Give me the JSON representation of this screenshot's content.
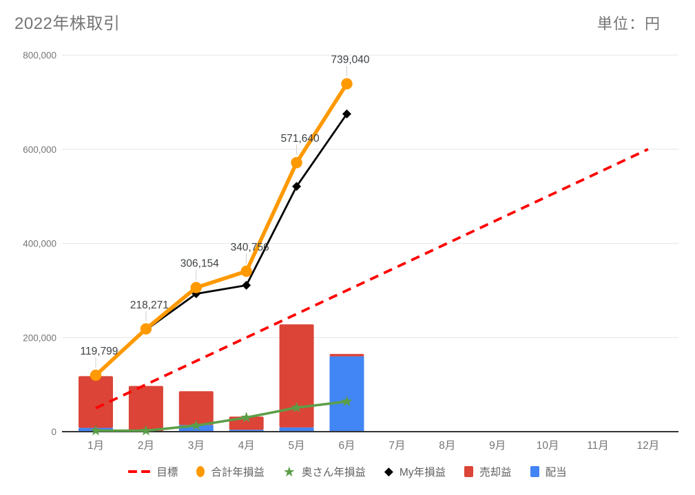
{
  "header": {
    "title": "2022年株取引",
    "unit_label": "単位：円"
  },
  "chart_data": {
    "type": "combo",
    "title": "2022年株取引",
    "unit_label": "単位：円",
    "categories": [
      "1月",
      "2月",
      "3月",
      "4月",
      "5月",
      "6月",
      "7月",
      "8月",
      "9月",
      "10月",
      "11月",
      "12月"
    ],
    "y_axis": {
      "min": 0,
      "max": 800000,
      "ticks": [
        0,
        200000,
        400000,
        600000,
        800000
      ],
      "tick_labels": [
        "0",
        "200,000",
        "400,000",
        "600,000",
        "800,000"
      ]
    },
    "grid": true,
    "legend_position": "bottom",
    "bar_stack_order_bottom_to_top": [
      "配当",
      "売却益"
    ],
    "colors": {
      "target_red": "#ff0000",
      "total_orange": "#ff9900",
      "wife_green": "#5b9e48",
      "my_black": "#000000",
      "sale_red": "#db4437",
      "dividend_blue": "#4285f4",
      "gridline": "#e6e6e6",
      "axis_line": "#333333",
      "axis_text": "#757575",
      "label_text": "#3c4043",
      "leader_line": "#cccccc"
    },
    "series": [
      {
        "name": "目標",
        "type": "line",
        "style": "dashed",
        "marker": "none",
        "color": "#ff0000",
        "month_start": 1,
        "month_end": 12,
        "values_endpoints": [
          50000,
          600000
        ]
      },
      {
        "name": "合計年損益",
        "type": "line",
        "style": "solid",
        "marker": "circle",
        "color": "#ff9900",
        "values": [
          119799,
          218271,
          306154,
          340756,
          571640,
          739040
        ],
        "data_labels": [
          "119,799",
          "218,271",
          "306,154",
          "340,756",
          "571,640",
          "739,040"
        ]
      },
      {
        "name": "奥さん年損益",
        "type": "line",
        "style": "solid",
        "marker": "star",
        "color": "#5b9e48",
        "values": [
          2000,
          2000,
          13000,
          30000,
          51000,
          64000
        ]
      },
      {
        "name": "My年損益",
        "type": "line",
        "style": "solid",
        "marker": "diamond",
        "color": "#000000",
        "values": [
          118000,
          216000,
          293000,
          311000,
          521000,
          675000
        ]
      },
      {
        "name": "売却益",
        "type": "bar",
        "color": "#db4437",
        "values": [
          110000,
          97000,
          72000,
          28000,
          219000,
          5000
        ]
      },
      {
        "name": "配当",
        "type": "bar",
        "color": "#4285f4",
        "values": [
          8000,
          0,
          14000,
          4000,
          9000,
          160000
        ]
      }
    ]
  }
}
